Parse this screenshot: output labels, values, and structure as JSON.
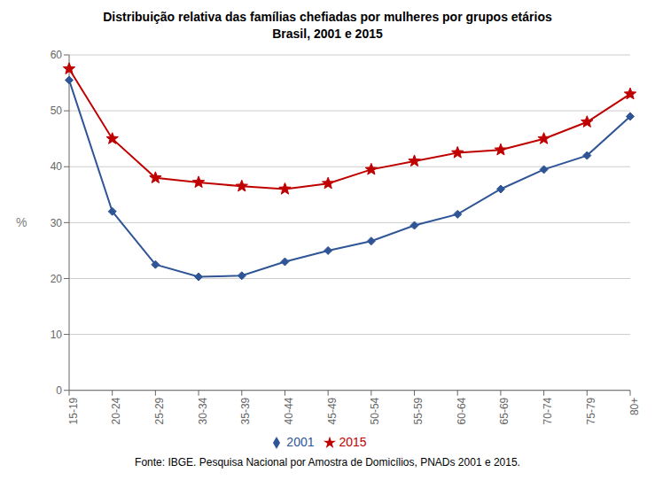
{
  "chart_data": {
    "type": "line",
    "title": "Distribuição relativa das famílias chefiadas por mulheres por grupos etários",
    "subtitle": "Brasil, 2001 e 2015",
    "ylabel": "%",
    "annotations": [
      "Fonte: IBGE. Pesquisa Nacional por Amostra de Domicílios, PNADs 2001 e 2015."
    ],
    "categories": [
      "15-19",
      "20-24",
      "25-29",
      "30-34",
      "35-39",
      "40-44",
      "45-49",
      "50-54",
      "55-59",
      "60-64",
      "65-69",
      "70-74",
      "75-79",
      "80+"
    ],
    "series": [
      {
        "name": "2001",
        "color": "#2F5597",
        "marker": "diamond",
        "values": [
          55.5,
          32.0,
          22.5,
          20.3,
          20.5,
          23.0,
          25.0,
          26.7,
          29.5,
          31.5,
          36.0,
          39.5,
          42.0,
          49.0
        ]
      },
      {
        "name": "2015",
        "color": "#C00000",
        "marker": "star",
        "values": [
          57.5,
          45.0,
          38.0,
          37.2,
          36.5,
          36.0,
          37.0,
          39.5,
          41.0,
          42.5,
          43.0,
          45.0,
          48.0,
          53.0
        ]
      }
    ],
    "ylim": [
      0,
      60
    ],
    "yticks": [
      0,
      10,
      20,
      30,
      40,
      50,
      60
    ],
    "grid": true,
    "legend": "bottom"
  }
}
